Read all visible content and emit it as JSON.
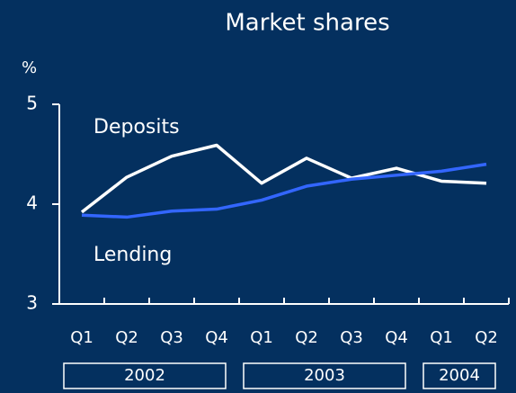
{
  "chart_data": {
    "type": "line",
    "title": "Market shares",
    "y_label": "%",
    "categories": [
      "Q1",
      "Q2",
      "Q3",
      "Q4",
      "Q1",
      "Q2",
      "Q3",
      "Q4",
      "Q1",
      "Q2"
    ],
    "groups": [
      {
        "label": "2002",
        "span": 4
      },
      {
        "label": "2003",
        "span": 4
      },
      {
        "label": "2004",
        "span": 2
      }
    ],
    "series": [
      {
        "name": "Deposits",
        "color": "#ffffff",
        "values": [
          3.92,
          4.27,
          4.48,
          4.59,
          4.21,
          4.46,
          4.26,
          4.36,
          4.23,
          4.21
        ]
      },
      {
        "name": "Lending",
        "color": "#3366ff",
        "values": [
          3.89,
          3.87,
          3.93,
          3.95,
          4.04,
          4.18,
          4.25,
          4.29,
          4.33,
          4.4
        ]
      }
    ],
    "ylim": [
      3,
      5
    ],
    "yticks": [
      3,
      4,
      5
    ],
    "grid": false
  }
}
